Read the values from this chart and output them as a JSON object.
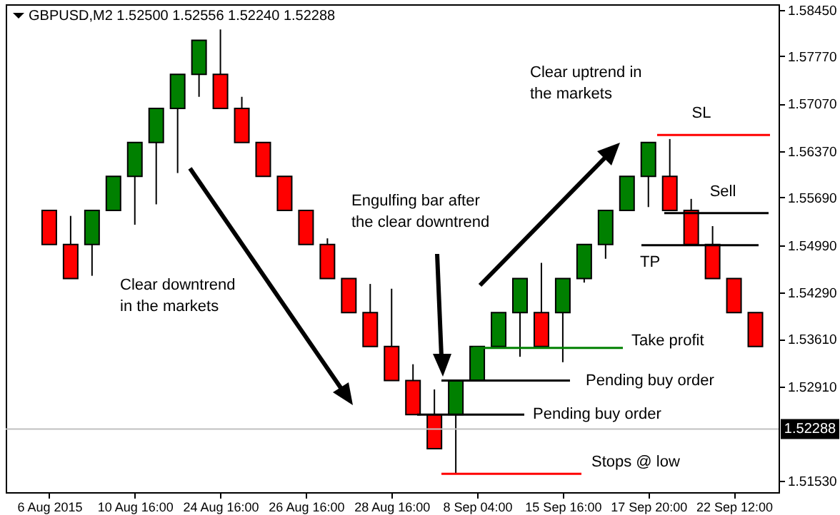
{
  "chart_data": {
    "type": "candlestick",
    "title": "GBPUSD,M2  1.52500 1.52556 1.52240 1.52288",
    "categories": [
      "6 Aug 2015",
      null,
      null,
      null,
      "10 Aug 16:00",
      null,
      null,
      null,
      "24 Aug 16:00",
      null,
      null,
      null,
      "26 Aug 16:00",
      null,
      null,
      null,
      "28 Aug 16:00",
      null,
      null,
      null,
      "8 Sep 04:00",
      null,
      null,
      null,
      "15 Sep 16:00",
      null,
      null,
      null,
      "17 Sep 20:00",
      null,
      null,
      null,
      "22 Sep 12:00",
      null
    ],
    "ohlc": [
      [
        1.555,
        1.555,
        1.55,
        1.55
      ],
      [
        1.55,
        1.5542,
        1.545,
        1.545
      ],
      [
        1.55,
        1.555,
        1.5454,
        1.555
      ],
      [
        1.555,
        1.56,
        1.555,
        1.56
      ],
      [
        1.56,
        1.565,
        1.5529,
        1.565
      ],
      [
        1.565,
        1.57,
        1.5559,
        1.57
      ],
      [
        1.57,
        1.575,
        1.5605,
        1.575
      ],
      [
        1.575,
        1.58,
        1.5717,
        1.58
      ],
      [
        1.575,
        1.5816,
        1.57,
        1.57
      ],
      [
        1.57,
        1.5717,
        1.565,
        1.565
      ],
      [
        1.565,
        1.565,
        1.56,
        1.56
      ],
      [
        1.56,
        1.56,
        1.555,
        1.555
      ],
      [
        1.555,
        1.555,
        1.55,
        1.55
      ],
      [
        1.55,
        1.5509,
        1.545,
        1.545
      ],
      [
        1.545,
        1.545,
        1.54,
        1.54
      ],
      [
        1.54,
        1.5442,
        1.535,
        1.535
      ],
      [
        1.535,
        1.5435,
        1.53,
        1.53
      ],
      [
        1.53,
        1.5324,
        1.525,
        1.525
      ],
      [
        1.525,
        1.5287,
        1.52,
        1.52
      ],
      [
        1.525,
        1.53,
        1.5163,
        1.53
      ],
      [
        1.53,
        1.535,
        1.53,
        1.535
      ],
      [
        1.535,
        1.54,
        1.535,
        1.54
      ],
      [
        1.54,
        1.545,
        1.5335,
        1.545
      ],
      [
        1.54,
        1.5473,
        1.535,
        1.535
      ],
      [
        1.54,
        1.545,
        1.5327,
        1.545
      ],
      [
        1.545,
        1.55,
        1.5444,
        1.55
      ],
      [
        1.55,
        1.555,
        1.5479,
        1.555
      ],
      [
        1.555,
        1.56,
        1.555,
        1.56
      ],
      [
        1.56,
        1.565,
        1.5555,
        1.565
      ],
      [
        1.56,
        1.5655,
        1.555,
        1.555
      ],
      [
        1.555,
        1.5567,
        1.55,
        1.55
      ],
      [
        1.55,
        1.5527,
        1.545,
        1.545
      ],
      [
        1.545,
        1.545,
        1.54,
        1.54
      ],
      [
        1.54,
        1.54,
        1.535,
        1.535
      ]
    ],
    "colors": [
      "#ff0000",
      "#ff0000",
      "#008000",
      "#008000",
      "#008000",
      "#008000",
      "#008000",
      "#008000",
      "#ff0000",
      "#ff0000",
      "#ff0000",
      "#ff0000",
      "#ff0000",
      "#ff0000",
      "#ff0000",
      "#ff0000",
      "#ff0000",
      "#ff0000",
      "#ff0000",
      "#008000",
      "#008000",
      "#008000",
      "#008000",
      "#ff0000",
      "#008000",
      "#008000",
      "#008000",
      "#008000",
      "#008000",
      "#ff0000",
      "#ff0000",
      "#ff0000",
      "#ff0000",
      "#ff0000"
    ],
    "ylim": [
      1.5136,
      1.5853
    ],
    "yticks": [
      {
        "value": 1.5845,
        "label": "1.58450"
      },
      {
        "value": 1.5777,
        "label": "1.57770"
      },
      {
        "value": 1.5707,
        "label": "1.57070"
      },
      {
        "value": 1.5637,
        "label": "1.56370"
      },
      {
        "value": 1.5569,
        "label": "1.55690"
      },
      {
        "value": 1.5499,
        "label": "1.54990"
      },
      {
        "value": 1.5429,
        "label": "1.54290"
      },
      {
        "value": 1.5361,
        "label": "1.53610"
      },
      {
        "value": 1.5291,
        "label": "1.52910"
      },
      {
        "value": 1.5153,
        "label": "1.51530"
      }
    ],
    "ref_lines": [
      {
        "axis": "y",
        "value": 1.5661,
        "label": "SL",
        "color": "#ff0000"
      },
      {
        "axis": "y",
        "value": 1.5546,
        "label": "Sell",
        "color": "#000000"
      },
      {
        "axis": "y",
        "value": 1.5499,
        "label": "TP",
        "color": "#000000"
      },
      {
        "axis": "y",
        "value": 1.5348,
        "label": "Take profit",
        "color": "#008000"
      },
      {
        "axis": "y",
        "value": 1.53,
        "label": "Pending buy order",
        "color": "#000000"
      },
      {
        "axis": "y",
        "value": 1.525,
        "label": "Pending buy order",
        "color": "#000000"
      },
      {
        "axis": "y",
        "value": 1.5163,
        "label": "Stops @ low",
        "color": "#ff0000"
      },
      {
        "axis": "y",
        "value": 1.52288,
        "label": "1.52288",
        "color": "#c0c0c0"
      }
    ],
    "annotations": [
      "Clear downtrend\nin the markets",
      "Engulfing bar after\nthe clear downtrend",
      "Clear uptrend in\nthe markets"
    ]
  }
}
